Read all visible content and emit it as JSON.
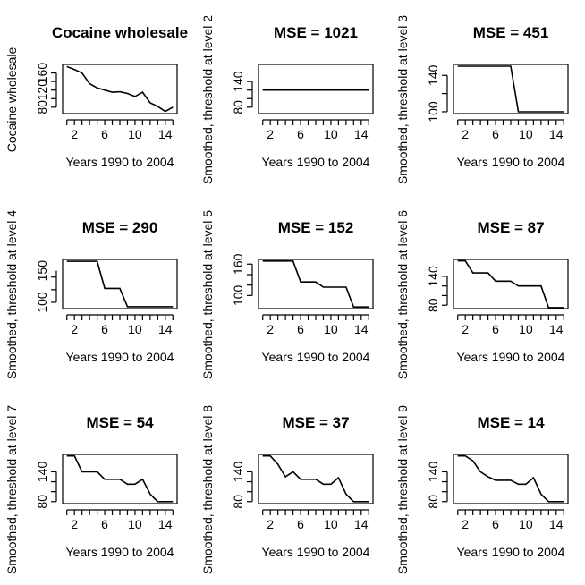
{
  "chart_data": [
    {
      "type": "line",
      "title": "Cocaine wholesale",
      "xlabel": "Years 1990 to 2004",
      "ylabel": "Cocaine wholesale",
      "x": [
        1,
        2,
        3,
        4,
        5,
        6,
        7,
        8,
        9,
        10,
        11,
        12,
        13,
        14,
        15
      ],
      "values": [
        175,
        168,
        160,
        135,
        125,
        120,
        115,
        116,
        112,
        105,
        115,
        90,
        82,
        70,
        80
      ],
      "xlim": [
        0.44,
        15.56
      ],
      "ylim": [
        65,
        180
      ],
      "xticks": [
        2,
        6,
        10,
        14
      ],
      "yticks": [
        80,
        120,
        160
      ]
    },
    {
      "type": "line",
      "title": "MSE = 1021",
      "xlabel": "Years 1990 to 2004",
      "ylabel": "Smoothed, threshold at level 2",
      "x": [
        1,
        2,
        3,
        4,
        5,
        6,
        7,
        8,
        9,
        10,
        11,
        12,
        13,
        14,
        15
      ],
      "values": [
        120,
        120,
        120,
        120,
        120,
        120,
        120,
        120,
        120,
        120,
        120,
        120,
        120,
        120,
        120
      ],
      "xlim": [
        0.44,
        15.56
      ],
      "ylim": [
        65,
        180
      ],
      "xticks": [
        2,
        6,
        10,
        14
      ],
      "yticks": [
        80,
        140
      ]
    },
    {
      "type": "line",
      "title": "MSE = 451",
      "xlabel": "Years 1990 to 2004",
      "ylabel": "Smoothed, threshold at level 3",
      "x": [
        1,
        2,
        3,
        4,
        5,
        6,
        7,
        8,
        9,
        10,
        11,
        12,
        13,
        14,
        15
      ],
      "values": [
        150,
        150,
        150,
        150,
        150,
        150,
        150,
        150,
        100,
        100,
        100,
        100,
        100,
        100,
        100
      ],
      "xlim": [
        0.44,
        15.56
      ],
      "ylim": [
        98,
        152
      ],
      "xticks": [
        2,
        6,
        10,
        14
      ],
      "yticks": [
        100,
        140
      ]
    },
    {
      "type": "line",
      "title": "MSE = 290",
      "xlabel": "Years 1990 to 2004",
      "ylabel": "Smoothed, threshold at level 4",
      "x": [
        1,
        2,
        3,
        4,
        5,
        6,
        7,
        8,
        9,
        10,
        11,
        12,
        13,
        14,
        15
      ],
      "values": [
        165,
        165,
        165,
        165,
        165,
        122,
        122,
        122,
        93,
        93,
        93,
        93,
        93,
        93,
        93
      ],
      "xlim": [
        0.44,
        15.56
      ],
      "ylim": [
        90,
        168
      ],
      "xticks": [
        2,
        6,
        10,
        14
      ],
      "yticks": [
        100,
        150
      ]
    },
    {
      "type": "line",
      "title": "MSE = 152",
      "xlabel": "Years 1990 to 2004",
      "ylabel": "Smoothed, threshold at level 5",
      "x": [
        1,
        2,
        3,
        4,
        5,
        6,
        7,
        8,
        9,
        10,
        11,
        12,
        13,
        14,
        15
      ],
      "values": [
        166,
        166,
        166,
        166,
        166,
        126,
        126,
        126,
        116,
        116,
        116,
        116,
        78,
        78,
        78
      ],
      "xlim": [
        0.44,
        15.56
      ],
      "ylim": [
        75,
        169
      ],
      "xticks": [
        2,
        6,
        10,
        14
      ],
      "yticks": [
        100,
        160
      ]
    },
    {
      "type": "line",
      "title": "MSE = 87",
      "xlabel": "Years 1990 to 2004",
      "ylabel": "Smoothed, threshold at level 6",
      "x": [
        1,
        2,
        3,
        4,
        5,
        6,
        7,
        8,
        9,
        10,
        11,
        12,
        13,
        14,
        15
      ],
      "values": [
        172,
        172,
        147,
        147,
        147,
        130,
        130,
        130,
        120,
        120,
        120,
        120,
        75,
        75,
        75
      ],
      "xlim": [
        0.44,
        15.56
      ],
      "ylim": [
        73,
        175
      ],
      "xticks": [
        2,
        6,
        10,
        14
      ],
      "yticks": [
        80,
        140
      ]
    },
    {
      "type": "line",
      "title": "MSE = 54",
      "xlabel": "Years 1990 to 2004",
      "ylabel": "Smoothed, threshold at level 7",
      "x": [
        1,
        2,
        3,
        4,
        5,
        6,
        7,
        8,
        9,
        10,
        11,
        12,
        13,
        14,
        15
      ],
      "values": [
        172,
        172,
        140,
        140,
        140,
        125,
        125,
        125,
        115,
        115,
        125,
        95,
        80,
        80,
        80
      ],
      "xlim": [
        0.44,
        15.56
      ],
      "ylim": [
        76,
        175
      ],
      "xticks": [
        2,
        6,
        10,
        14
      ],
      "yticks": [
        80,
        140
      ]
    },
    {
      "type": "line",
      "title": "MSE = 37",
      "xlabel": "Years 1990 to 2004",
      "ylabel": "Smoothed, threshold at level 8",
      "x": [
        1,
        2,
        3,
        4,
        5,
        6,
        7,
        8,
        9,
        10,
        11,
        12,
        13,
        14,
        15
      ],
      "values": [
        172,
        172,
        155,
        130,
        140,
        125,
        125,
        125,
        115,
        115,
        128,
        95,
        80,
        80,
        80
      ],
      "xlim": [
        0.44,
        15.56
      ],
      "ylim": [
        76,
        175
      ],
      "xticks": [
        2,
        6,
        10,
        14
      ],
      "yticks": [
        80,
        140
      ]
    },
    {
      "type": "line",
      "title": "MSE = 14",
      "xlabel": "Years 1990 to 2004",
      "ylabel": "Smoothed, threshold at level 9",
      "x": [
        1,
        2,
        3,
        4,
        5,
        6,
        7,
        8,
        9,
        10,
        11,
        12,
        13,
        14,
        15
      ],
      "values": [
        172,
        172,
        162,
        140,
        130,
        123,
        123,
        123,
        115,
        115,
        128,
        95,
        80,
        80,
        80
      ],
      "xlim": [
        0.44,
        15.56
      ],
      "ylim": [
        76,
        175
      ],
      "xticks": [
        2,
        6,
        10,
        14
      ],
      "yticks": [
        80,
        140
      ]
    }
  ]
}
